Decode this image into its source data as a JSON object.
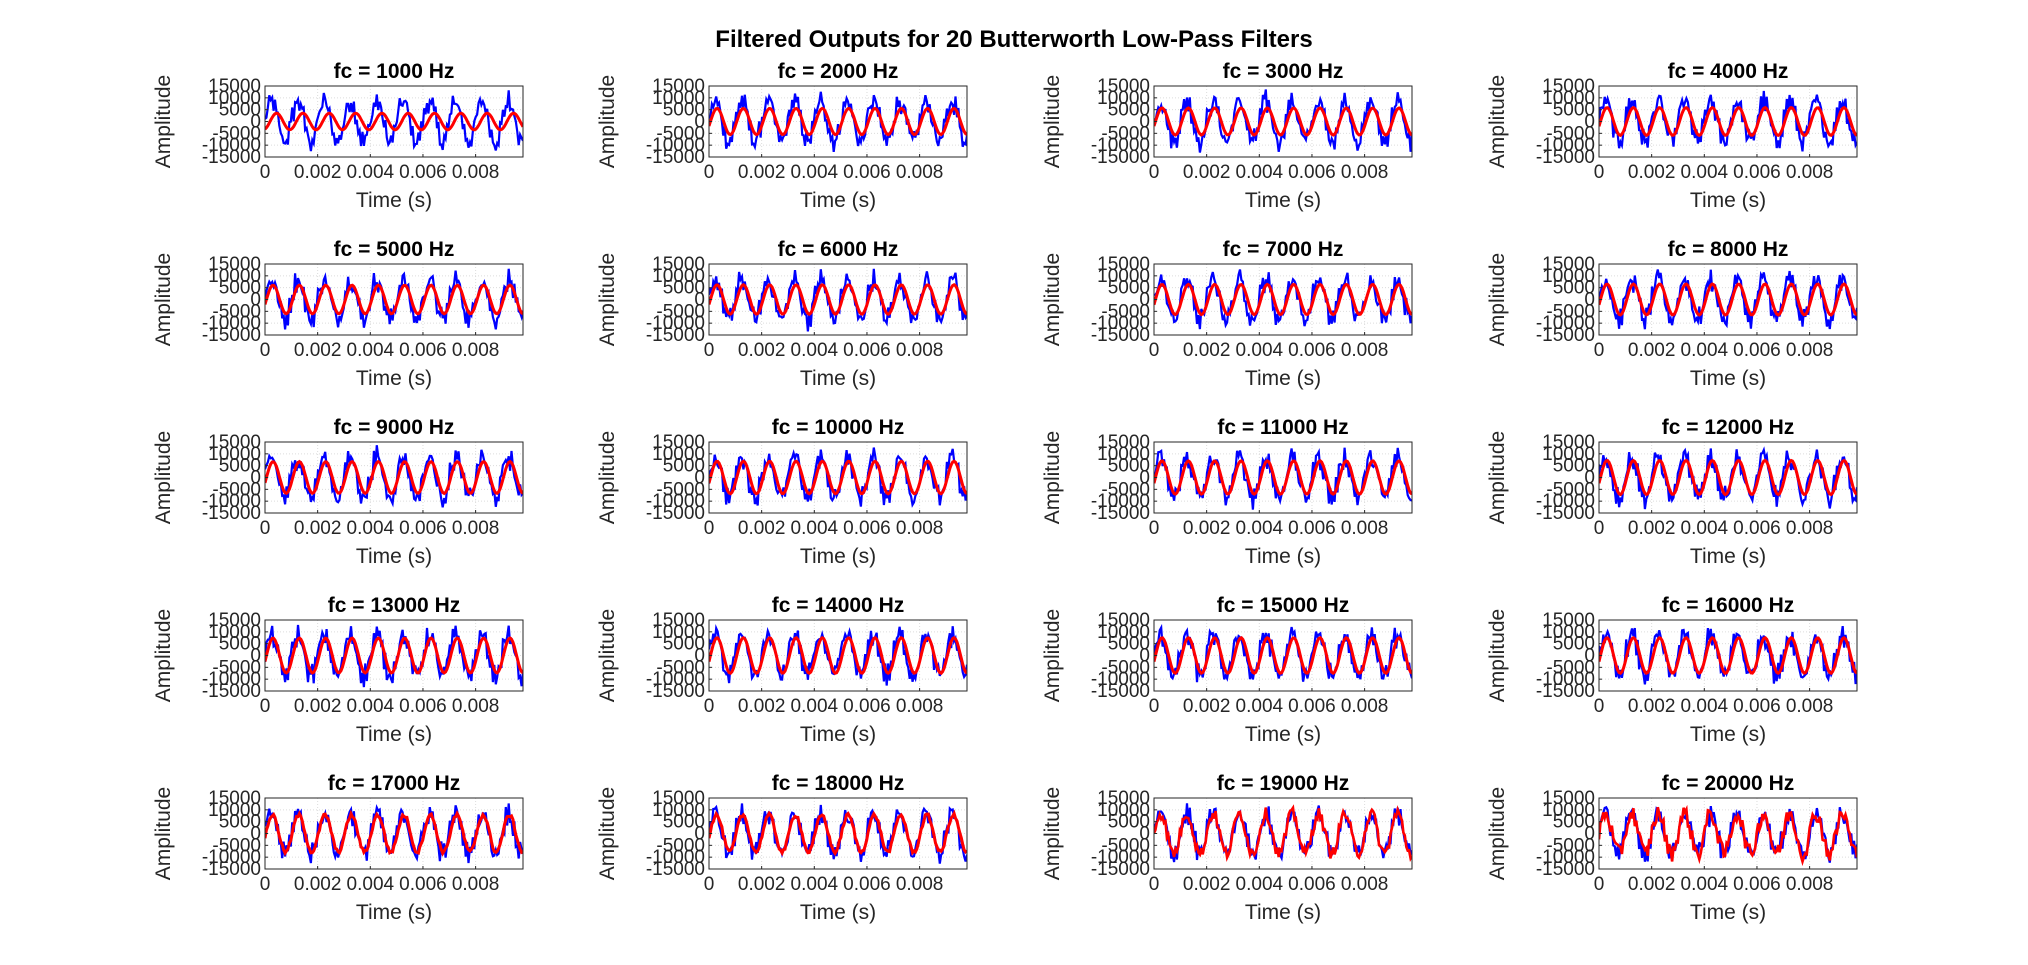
{
  "figure": {
    "title": "Filtered Outputs for 20 Butterworth Low-Pass Filters"
  },
  "colors": {
    "noisy_signal": "#0000ff",
    "filtered_signal": "#ff0000",
    "axes": "#262626",
    "grid": "#dcdcdc"
  },
  "chart_data": [
    {
      "type": "line",
      "title": "fc = 1000 Hz",
      "xlabel": "Time (s)",
      "ylabel": "Amplitude",
      "xlim": [
        0,
        0.0098
      ],
      "ylim": [
        -15000,
        15000
      ],
      "xticks": [
        0,
        0.002,
        0.004,
        0.006,
        0.008
      ],
      "xtick_labels": [
        "0",
        "0.002",
        "0.004",
        "0.006",
        "0.008"
      ],
      "yticks": [
        -15000,
        -10000,
        -5000,
        0,
        5000,
        10000,
        15000
      ],
      "ytick_labels": [
        "-15000",
        "-10000",
        "-5000",
        "0",
        "5000",
        "10000",
        "15000"
      ],
      "grid": true,
      "series": [
        {
          "color": "#0000ff",
          "style": "noisy sine, ~1000 Hz, amplitude ~10000"
        },
        {
          "color": "#ff0000",
          "style": "smooth sine, ~1000 Hz, amplitude ~3500, phase-lagged"
        }
      ]
    },
    {
      "type": "line",
      "title": "fc = 2000 Hz",
      "xlabel": "Time (s)",
      "ylabel": "Amplitude",
      "xlim": [
        0,
        0.0098
      ],
      "ylim": [
        -15000,
        15000
      ],
      "xticks": [
        0,
        0.002,
        0.004,
        0.006,
        0.008
      ],
      "xtick_labels": [
        "0",
        "0.002",
        "0.004",
        "0.006",
        "0.008"
      ],
      "yticks": [
        -15000,
        -10000,
        -5000,
        0,
        5000,
        10000,
        15000
      ],
      "ytick_labels": [
        "-15000",
        "-10000",
        "-5000",
        "0",
        "5000",
        "10000",
        "15000"
      ],
      "grid": true,
      "series": [
        {
          "color": "#0000ff",
          "style": "noisy sine, ~1000 Hz, amplitude ~10000"
        },
        {
          "color": "#ff0000",
          "style": "smooth sine, ~1000 Hz, amplitude ~6000"
        }
      ]
    },
    {
      "type": "line",
      "title": "fc = 3000 Hz",
      "xlabel": "Time (s)",
      "ylabel": "Amplitude",
      "xlim": [
        0,
        0.0098
      ],
      "ylim": [
        -15000,
        15000
      ],
      "xticks": [
        0,
        0.002,
        0.004,
        0.006,
        0.008
      ],
      "xtick_labels": [
        "0",
        "0.002",
        "0.004",
        "0.006",
        "0.008"
      ],
      "yticks": [
        -15000,
        -10000,
        -5000,
        0,
        5000,
        10000,
        15000
      ],
      "ytick_labels": [
        "-15000",
        "-10000",
        "-5000",
        "0",
        "5000",
        "10000",
        "15000"
      ],
      "grid": true,
      "series": [
        {
          "color": "#0000ff",
          "style": "noisy sine"
        },
        {
          "color": "#ff0000",
          "style": "smooth sine, amplitude ~6500"
        }
      ]
    },
    {
      "type": "line",
      "title": "fc = 4000 Hz",
      "xlabel": "Time (s)",
      "ylabel": "Amplitude",
      "xlim": [
        0,
        0.0098
      ],
      "ylim": [
        -15000,
        15000
      ],
      "xticks": [
        0,
        0.002,
        0.004,
        0.006,
        0.008
      ],
      "xtick_labels": [
        "0",
        "0.002",
        "0.004",
        "0.006",
        "0.008"
      ],
      "yticks": [
        -15000,
        -10000,
        -5000,
        0,
        5000,
        10000,
        15000
      ],
      "ytick_labels": [
        "-15000",
        "-10000",
        "-5000",
        "0",
        "5000",
        "10000",
        "15000"
      ],
      "grid": true,
      "series": [
        {
          "color": "#0000ff",
          "style": "noisy sine"
        },
        {
          "color": "#ff0000",
          "style": "smooth sine, amplitude ~7000"
        }
      ]
    },
    {
      "type": "line",
      "title": "fc = 5000 Hz",
      "xlabel": "Time (s)",
      "ylabel": "Amplitude",
      "xlim": [
        0,
        0.0098
      ],
      "ylim": [
        -15000,
        15000
      ],
      "xticks": [
        0,
        0.002,
        0.004,
        0.006,
        0.008
      ],
      "xtick_labels": [
        "0",
        "0.002",
        "0.004",
        "0.006",
        "0.008"
      ],
      "yticks": [
        -15000,
        -10000,
        -5000,
        0,
        5000,
        10000,
        15000
      ],
      "ytick_labels": [
        "-15000",
        "-10000",
        "-5000",
        "0",
        "5000",
        "10000",
        "15000"
      ],
      "grid": true,
      "series": [
        {
          "color": "#0000ff",
          "style": "noisy sine"
        },
        {
          "color": "#ff0000",
          "style": "smooth sine, amplitude ~7000"
        }
      ]
    },
    {
      "type": "line",
      "title": "fc = 6000 Hz",
      "xlabel": "Time (s)",
      "ylabel": "Amplitude",
      "xlim": [
        0,
        0.0098
      ],
      "ylim": [
        -15000,
        15000
      ],
      "xticks": [
        0,
        0.002,
        0.004,
        0.006,
        0.008
      ],
      "xtick_labels": [
        "0",
        "0.002",
        "0.004",
        "0.006",
        "0.008"
      ],
      "yticks": [
        -15000,
        -10000,
        -5000,
        0,
        5000,
        10000,
        15000
      ],
      "ytick_labels": [
        "-15000",
        "-10000",
        "-5000",
        "0",
        "5000",
        "10000",
        "15000"
      ],
      "grid": true,
      "series": [
        {
          "color": "#0000ff",
          "style": "noisy sine"
        },
        {
          "color": "#ff0000",
          "style": "smooth sine, amplitude ~7000"
        }
      ]
    },
    {
      "type": "line",
      "title": "fc = 7000 Hz",
      "xlabel": "Time (s)",
      "ylabel": "Amplitude",
      "xlim": [
        0,
        0.0098
      ],
      "ylim": [
        -15000,
        15000
      ],
      "xticks": [
        0,
        0.002,
        0.004,
        0.006,
        0.008
      ],
      "xtick_labels": [
        "0",
        "0.002",
        "0.004",
        "0.006",
        "0.008"
      ],
      "yticks": [
        -15000,
        -10000,
        -5000,
        0,
        5000,
        10000,
        15000
      ],
      "ytick_labels": [
        "-15000",
        "-10000",
        "-5000",
        "0",
        "5000",
        "10000",
        "15000"
      ],
      "grid": true,
      "series": [
        {
          "color": "#0000ff",
          "style": "noisy sine"
        },
        {
          "color": "#ff0000",
          "style": "smooth sine, amplitude ~7000"
        }
      ]
    },
    {
      "type": "line",
      "title": "fc = 8000 Hz",
      "xlabel": "Time (s)",
      "ylabel": "Amplitude",
      "xlim": [
        0,
        0.0098
      ],
      "ylim": [
        -15000,
        15000
      ],
      "xticks": [
        0,
        0.002,
        0.004,
        0.006,
        0.008
      ],
      "xtick_labels": [
        "0",
        "0.002",
        "0.004",
        "0.006",
        "0.008"
      ],
      "yticks": [
        -15000,
        -10000,
        -5000,
        0,
        5000,
        10000,
        15000
      ],
      "ytick_labels": [
        "-15000",
        "-10000",
        "-5000",
        "0",
        "5000",
        "10000",
        "15000"
      ],
      "grid": true,
      "series": [
        {
          "color": "#0000ff",
          "style": "noisy sine"
        },
        {
          "color": "#ff0000",
          "style": "smooth sine, amplitude ~7000"
        }
      ]
    },
    {
      "type": "line",
      "title": "fc = 9000 Hz",
      "xlabel": "Time (s)",
      "ylabel": "Amplitude",
      "xlim": [
        0,
        0.0098
      ],
      "ylim": [
        -15000,
        15000
      ],
      "xticks": [
        0,
        0.002,
        0.004,
        0.006,
        0.008
      ],
      "xtick_labels": [
        "0",
        "0.002",
        "0.004",
        "0.006",
        "0.008"
      ],
      "yticks": [
        -15000,
        -10000,
        -5000,
        0,
        5000,
        10000,
        15000
      ],
      "ytick_labels": [
        "-15000",
        "-10000",
        "-5000",
        "0",
        "5000",
        "10000",
        "15000"
      ],
      "grid": true,
      "series": [
        {
          "color": "#0000ff",
          "style": "noisy sine"
        },
        {
          "color": "#ff0000",
          "style": "smooth sine, amplitude ~7000"
        }
      ]
    },
    {
      "type": "line",
      "title": "fc = 10000 Hz",
      "xlabel": "Time (s)",
      "ylabel": "Amplitude",
      "xlim": [
        0,
        0.0098
      ],
      "ylim": [
        -15000,
        15000
      ],
      "xticks": [
        0,
        0.002,
        0.004,
        0.006,
        0.008
      ],
      "xtick_labels": [
        "0",
        "0.002",
        "0.004",
        "0.006",
        "0.008"
      ],
      "yticks": [
        -15000,
        -10000,
        -5000,
        0,
        5000,
        10000,
        15000
      ],
      "ytick_labels": [
        "-15000",
        "-10000",
        "-5000",
        "0",
        "5000",
        "10000",
        "15000"
      ],
      "grid": true,
      "series": [
        {
          "color": "#0000ff",
          "style": "noisy sine"
        },
        {
          "color": "#ff0000",
          "style": "smooth sine, amplitude ~7000"
        }
      ]
    },
    {
      "type": "line",
      "title": "fc = 11000 Hz",
      "xlabel": "Time (s)",
      "ylabel": "Amplitude",
      "xlim": [
        0,
        0.0098
      ],
      "ylim": [
        -15000,
        15000
      ],
      "xticks": [
        0,
        0.002,
        0.004,
        0.006,
        0.008
      ],
      "xtick_labels": [
        "0",
        "0.002",
        "0.004",
        "0.006",
        "0.008"
      ],
      "yticks": [
        -15000,
        -10000,
        -5000,
        0,
        5000,
        10000,
        15000
      ],
      "ytick_labels": [
        "-15000",
        "-10000",
        "-5000",
        "0",
        "5000",
        "10000",
        "15000"
      ],
      "grid": true,
      "series": [
        {
          "color": "#0000ff",
          "style": "noisy sine"
        },
        {
          "color": "#ff0000",
          "style": "smooth sine, amplitude ~7000"
        }
      ]
    },
    {
      "type": "line",
      "title": "fc = 12000 Hz",
      "xlabel": "Time (s)",
      "ylabel": "Amplitude",
      "xlim": [
        0,
        0.0098
      ],
      "ylim": [
        -15000,
        15000
      ],
      "xticks": [
        0,
        0.002,
        0.004,
        0.006,
        0.008
      ],
      "xtick_labels": [
        "0",
        "0.002",
        "0.004",
        "0.006",
        "0.008"
      ],
      "yticks": [
        -15000,
        -10000,
        -5000,
        0,
        5000,
        10000,
        15000
      ],
      "ytick_labels": [
        "-15000",
        "-10000",
        "-5000",
        "0",
        "5000",
        "10000",
        "15000"
      ],
      "grid": true,
      "series": [
        {
          "color": "#0000ff",
          "style": "noisy sine"
        },
        {
          "color": "#ff0000",
          "style": "smooth sine, amplitude ~7000"
        }
      ]
    },
    {
      "type": "line",
      "title": "fc = 13000 Hz",
      "xlabel": "Time (s)",
      "ylabel": "Amplitude",
      "xlim": [
        0,
        0.0098
      ],
      "ylim": [
        -15000,
        15000
      ],
      "xticks": [
        0,
        0.002,
        0.004,
        0.006,
        0.008
      ],
      "xtick_labels": [
        "0",
        "0.002",
        "0.004",
        "0.006",
        "0.008"
      ],
      "yticks": [
        -15000,
        -10000,
        -5000,
        0,
        5000,
        10000,
        15000
      ],
      "ytick_labels": [
        "-15000",
        "-10000",
        "-5000",
        "0",
        "5000",
        "10000",
        "15000"
      ],
      "grid": true,
      "series": [
        {
          "color": "#0000ff",
          "style": "noisy sine"
        },
        {
          "color": "#ff0000",
          "style": "smooth sine, amplitude ~7000"
        }
      ]
    },
    {
      "type": "line",
      "title": "fc = 14000 Hz",
      "xlabel": "Time (s)",
      "ylabel": "Amplitude",
      "xlim": [
        0,
        0.0098
      ],
      "ylim": [
        -15000,
        15000
      ],
      "xticks": [
        0,
        0.002,
        0.004,
        0.006,
        0.008
      ],
      "xtick_labels": [
        "0",
        "0.002",
        "0.004",
        "0.006",
        "0.008"
      ],
      "yticks": [
        -15000,
        -10000,
        -5000,
        0,
        5000,
        10000,
        15000
      ],
      "ytick_labels": [
        "-15000",
        "-10000",
        "-5000",
        "0",
        "5000",
        "10000",
        "15000"
      ],
      "grid": true,
      "series": [
        {
          "color": "#0000ff",
          "style": "noisy sine"
        },
        {
          "color": "#ff0000",
          "style": "smooth sine, amplitude ~7500"
        }
      ]
    },
    {
      "type": "line",
      "title": "fc = 15000 Hz",
      "xlabel": "Time (s)",
      "ylabel": "Amplitude",
      "xlim": [
        0,
        0.0098
      ],
      "ylim": [
        -15000,
        15000
      ],
      "xticks": [
        0,
        0.002,
        0.004,
        0.006,
        0.008
      ],
      "xtick_labels": [
        "0",
        "0.002",
        "0.004",
        "0.006",
        "0.008"
      ],
      "yticks": [
        -15000,
        -10000,
        -5000,
        0,
        5000,
        10000,
        15000
      ],
      "ytick_labels": [
        "-15000",
        "-10000",
        "-5000",
        "0",
        "5000",
        "10000",
        "15000"
      ],
      "grid": true,
      "series": [
        {
          "color": "#0000ff",
          "style": "noisy sine"
        },
        {
          "color": "#ff0000",
          "style": "smooth sine, amplitude ~7500"
        }
      ]
    },
    {
      "type": "line",
      "title": "fc = 16000 Hz",
      "xlabel": "Time (s)",
      "ylabel": "Amplitude",
      "xlim": [
        0,
        0.0098
      ],
      "ylim": [
        -15000,
        15000
      ],
      "xticks": [
        0,
        0.002,
        0.004,
        0.006,
        0.008
      ],
      "xtick_labels": [
        "0",
        "0.002",
        "0.004",
        "0.006",
        "0.008"
      ],
      "yticks": [
        -15000,
        -10000,
        -5000,
        0,
        5000,
        10000,
        15000
      ],
      "ytick_labels": [
        "-15000",
        "-10000",
        "-5000",
        "0",
        "5000",
        "10000",
        "15000"
      ],
      "grid": true,
      "series": [
        {
          "color": "#0000ff",
          "style": "noisy sine"
        },
        {
          "color": "#ff0000",
          "style": "smooth sine, amplitude ~7500"
        }
      ]
    },
    {
      "type": "line",
      "title": "fc = 17000 Hz",
      "xlabel": "Time (s)",
      "ylabel": "Amplitude",
      "xlim": [
        0,
        0.0098
      ],
      "ylim": [
        -15000,
        15000
      ],
      "xticks": [
        0,
        0.002,
        0.004,
        0.006,
        0.008
      ],
      "xtick_labels": [
        "0",
        "0.002",
        "0.004",
        "0.006",
        "0.008"
      ],
      "yticks": [
        -15000,
        -10000,
        -5000,
        0,
        5000,
        10000,
        15000
      ],
      "ytick_labels": [
        "-15000",
        "-10000",
        "-5000",
        "0",
        "5000",
        "10000",
        "15000"
      ],
      "grid": true,
      "series": [
        {
          "color": "#0000ff",
          "style": "noisy sine"
        },
        {
          "color": "#ff0000",
          "style": "sine, amplitude ~7500, slight ripple"
        }
      ]
    },
    {
      "type": "line",
      "title": "fc = 18000 Hz",
      "xlabel": "Time (s)",
      "ylabel": "Amplitude",
      "xlim": [
        0,
        0.0098
      ],
      "ylim": [
        -15000,
        15000
      ],
      "xticks": [
        0,
        0.002,
        0.004,
        0.006,
        0.008
      ],
      "xtick_labels": [
        "0",
        "0.002",
        "0.004",
        "0.006",
        "0.008"
      ],
      "yticks": [
        -15000,
        -10000,
        -5000,
        0,
        5000,
        10000,
        15000
      ],
      "ytick_labels": [
        "-15000",
        "-10000",
        "-5000",
        "0",
        "5000",
        "10000",
        "15000"
      ],
      "grid": true,
      "series": [
        {
          "color": "#0000ff",
          "style": "noisy sine"
        },
        {
          "color": "#ff0000",
          "style": "sine, amplitude ~8000, slight ripple"
        }
      ]
    },
    {
      "type": "line",
      "title": "fc = 19000 Hz",
      "xlabel": "Time (s)",
      "ylabel": "Amplitude",
      "xlim": [
        0,
        0.0098
      ],
      "ylim": [
        -15000,
        15000
      ],
      "xticks": [
        0,
        0.002,
        0.004,
        0.006,
        0.008
      ],
      "xtick_labels": [
        "0",
        "0.002",
        "0.004",
        "0.006",
        "0.008"
      ],
      "yticks": [
        -15000,
        -10000,
        -5000,
        0,
        5000,
        10000,
        15000
      ],
      "ytick_labels": [
        "-15000",
        "-10000",
        "-5000",
        "0",
        "5000",
        "10000",
        "15000"
      ],
      "grid": true,
      "series": [
        {
          "color": "#0000ff",
          "style": "noisy sine"
        },
        {
          "color": "#ff0000",
          "style": "noisy sine, nearly unfiltered"
        }
      ]
    },
    {
      "type": "line",
      "title": "fc = 20000 Hz",
      "xlabel": "Time (s)",
      "ylabel": "Amplitude",
      "xlim": [
        0,
        0.0098
      ],
      "ylim": [
        -15000,
        15000
      ],
      "xticks": [
        0,
        0.002,
        0.004,
        0.006,
        0.008
      ],
      "xtick_labels": [
        "0",
        "0.002",
        "0.004",
        "0.006",
        "0.008"
      ],
      "yticks": [
        -15000,
        -10000,
        -5000,
        0,
        5000,
        10000,
        15000
      ],
      "ytick_labels": [
        "-15000",
        "-10000",
        "-5000",
        "0",
        "5000",
        "10000",
        "15000"
      ],
      "grid": true,
      "series": [
        {
          "color": "#0000ff",
          "style": "noisy sine"
        },
        {
          "color": "#ff0000",
          "style": "noisy sine, unfiltered, fully overlaps"
        }
      ]
    }
  ]
}
